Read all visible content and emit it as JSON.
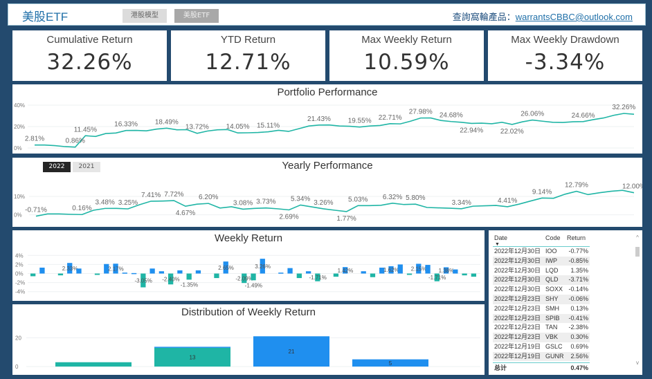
{
  "header": {
    "title": "美股ETF",
    "tabs": [
      "港股模型",
      "美股ETF"
    ],
    "contact_label": "查詢窩輪產品：",
    "contact_email": "warrantsCBBC@outlook.com"
  },
  "kpis": [
    {
      "label": "Cumulative Return",
      "value": "32.26%"
    },
    {
      "label": "YTD Return",
      "value": "12.71%"
    },
    {
      "label": "Max Weekly Return",
      "value": "10.59%"
    },
    {
      "label": "Max Weekly Drawdown",
      "value": "-3.34%"
    }
  ],
  "colors": {
    "teal": "#1fb5a5",
    "blue": "#1f8fef",
    "frame": "#234a6e"
  },
  "chart_data": [
    {
      "type": "line",
      "title": "Portfolio Performance",
      "yticks": [
        "0%",
        "20%",
        "40%"
      ],
      "ylim": [
        0,
        40
      ],
      "values": [
        2.81,
        2.8,
        2.2,
        1.3,
        0.86,
        11.45,
        10.8,
        13.5,
        14,
        16.33,
        16.4,
        16,
        17.6,
        18.49,
        17,
        17.1,
        13.72,
        15.8,
        17,
        17.2,
        14.05,
        14.2,
        14.5,
        15.11,
        16.5,
        15.5,
        18,
        20.5,
        21.43,
        21.5,
        20.5,
        20.3,
        19.55,
        20.5,
        21,
        22.71,
        22.5,
        25,
        27.98,
        28,
        25.7,
        24.68,
        24,
        22.94,
        23.2,
        22.6,
        24,
        22.02,
        24.4,
        26.06,
        25,
        24,
        23.8,
        24.5,
        24.66,
        26.5,
        28,
        30.5,
        32.26,
        31.5
      ],
      "labels": {
        "0": "2.81%",
        "4": "0.86%",
        "5": "11.45%",
        "9": "16.33%",
        "13": "18.49%",
        "16": "13.72%",
        "20": "14.05%",
        "23": "15.11%",
        "28": "21.43%",
        "32": "19.55%",
        "35": "22.71%",
        "38": "27.98%",
        "41": "24.68%",
        "43": "22.94%",
        "47": "22.02%",
        "49": "26.06%",
        "54": "24.66%",
        "58": "32.26%"
      }
    },
    {
      "type": "line",
      "title": "Yearly Performance",
      "years": [
        "2022",
        "2021"
      ],
      "yticks": [
        "0%",
        "10%"
      ],
      "ylim": [
        -2,
        16
      ],
      "values": [
        -0.71,
        0.5,
        0.5,
        0.3,
        0.16,
        2.5,
        3.48,
        3.5,
        3.25,
        5.5,
        7.41,
        7.5,
        7.72,
        4.67,
        5.8,
        6.2,
        3.7,
        4.4,
        3.08,
        3.5,
        3.73,
        3.3,
        2.69,
        5.34,
        4.3,
        3.26,
        2.5,
        1.77,
        5.03,
        5.0,
        5.2,
        6.32,
        5.6,
        5.8,
        4.0,
        3.8,
        3.6,
        3.34,
        4.7,
        4.9,
        5.1,
        4.41,
        5.8,
        7.5,
        9.14,
        9.0,
        11.2,
        12.79,
        11.0,
        12.0,
        12.8,
        13.3,
        12.0
      ],
      "labels": {
        "0": "-0.71%",
        "4": "0.16%",
        "6": "3.48%",
        "8": "3.25%",
        "10": "7.41%",
        "12": "7.72%",
        "13": "4.67%",
        "15": "6.20%",
        "18": "3.08%",
        "20": "3.73%",
        "22": "2.69%",
        "23": "5.34%",
        "25": "3.26%",
        "27": "1.77%",
        "28": "5.03%",
        "31": "6.32%",
        "33": "5.80%",
        "37": "3.34%",
        "41": "4.41%",
        "44": "9.14%",
        "47": "12.79%",
        "52": "12.00%"
      }
    },
    {
      "type": "bar",
      "title": "Weekly Return",
      "yticks": [
        "4%",
        "2%",
        "0%",
        "-2%",
        "-4%"
      ],
      "ylim": [
        -4.5,
        4.5
      ],
      "values": [
        -0.6,
        1.3,
        null,
        -0.4,
        2.33,
        1.1,
        null,
        -0.3,
        2.1,
        2.17,
        0.2,
        0.1,
        -3.05,
        1.1,
        0.5,
        -2.4,
        0.7,
        -1.35,
        0.7,
        null,
        -1.0,
        2.65,
        null,
        -2.09,
        -1.49,
        3.26,
        null,
        0.2,
        1.2,
        -1.0,
        0.5,
        -1.71,
        null,
        -0.7,
        1.42,
        null,
        0.5,
        -0.8,
        1.3,
        1.62,
        2.0,
        -0.3,
        2.15,
        1.9,
        -1.71,
        1.38,
        0.9,
        -0.4,
        -0.7
      ],
      "labels": {
        "4": "2.33%",
        "9": "2.17%",
        "12": "-3.05%",
        "15": "-2.40%",
        "17": "-1.35%",
        "21": "2.65%",
        "23": "-2.09%",
        "24": "-1.49%",
        "25": "3.26%",
        "31": "-1.71%",
        "34": "1.42%",
        "39": "1.62%",
        "42": "2.15%",
        "44": "-1.71%",
        "45": "1.38%"
      }
    },
    {
      "type": "bar",
      "title": "Distribution of Weekly Return",
      "yticks": [
        "0",
        "20"
      ],
      "ylim": [
        0,
        24
      ],
      "values": [
        3,
        13,
        21,
        5
      ],
      "labels": [
        "",
        "13",
        "21",
        "5"
      ]
    }
  ],
  "table": {
    "headers": [
      "Date",
      "Code",
      "Return"
    ],
    "rows": [
      [
        "2022年12月30日",
        "IOO",
        "-0.77%"
      ],
      [
        "2022年12月30日",
        "IWP",
        "-0.85%"
      ],
      [
        "2022年12月30日",
        "LQD",
        "1.35%"
      ],
      [
        "2022年12月30日",
        "QLD",
        "-3.71%"
      ],
      [
        "2022年12月30日",
        "SOXX",
        "-0.14%"
      ],
      [
        "2022年12月23日",
        "SHY",
        "-0.06%"
      ],
      [
        "2022年12月23日",
        "SMH",
        "0.13%"
      ],
      [
        "2022年12月23日",
        "SPIB",
        "-0.41%"
      ],
      [
        "2022年12月23日",
        "TAN",
        "-2.38%"
      ],
      [
        "2022年12月23日",
        "VBK",
        "0.30%"
      ],
      [
        "2022年12月19日",
        "GSLC",
        "0.69%"
      ],
      [
        "2022年12月19日",
        "GUNR",
        "2.56%"
      ]
    ],
    "total_label": "总计",
    "total_value": "0.47%"
  }
}
